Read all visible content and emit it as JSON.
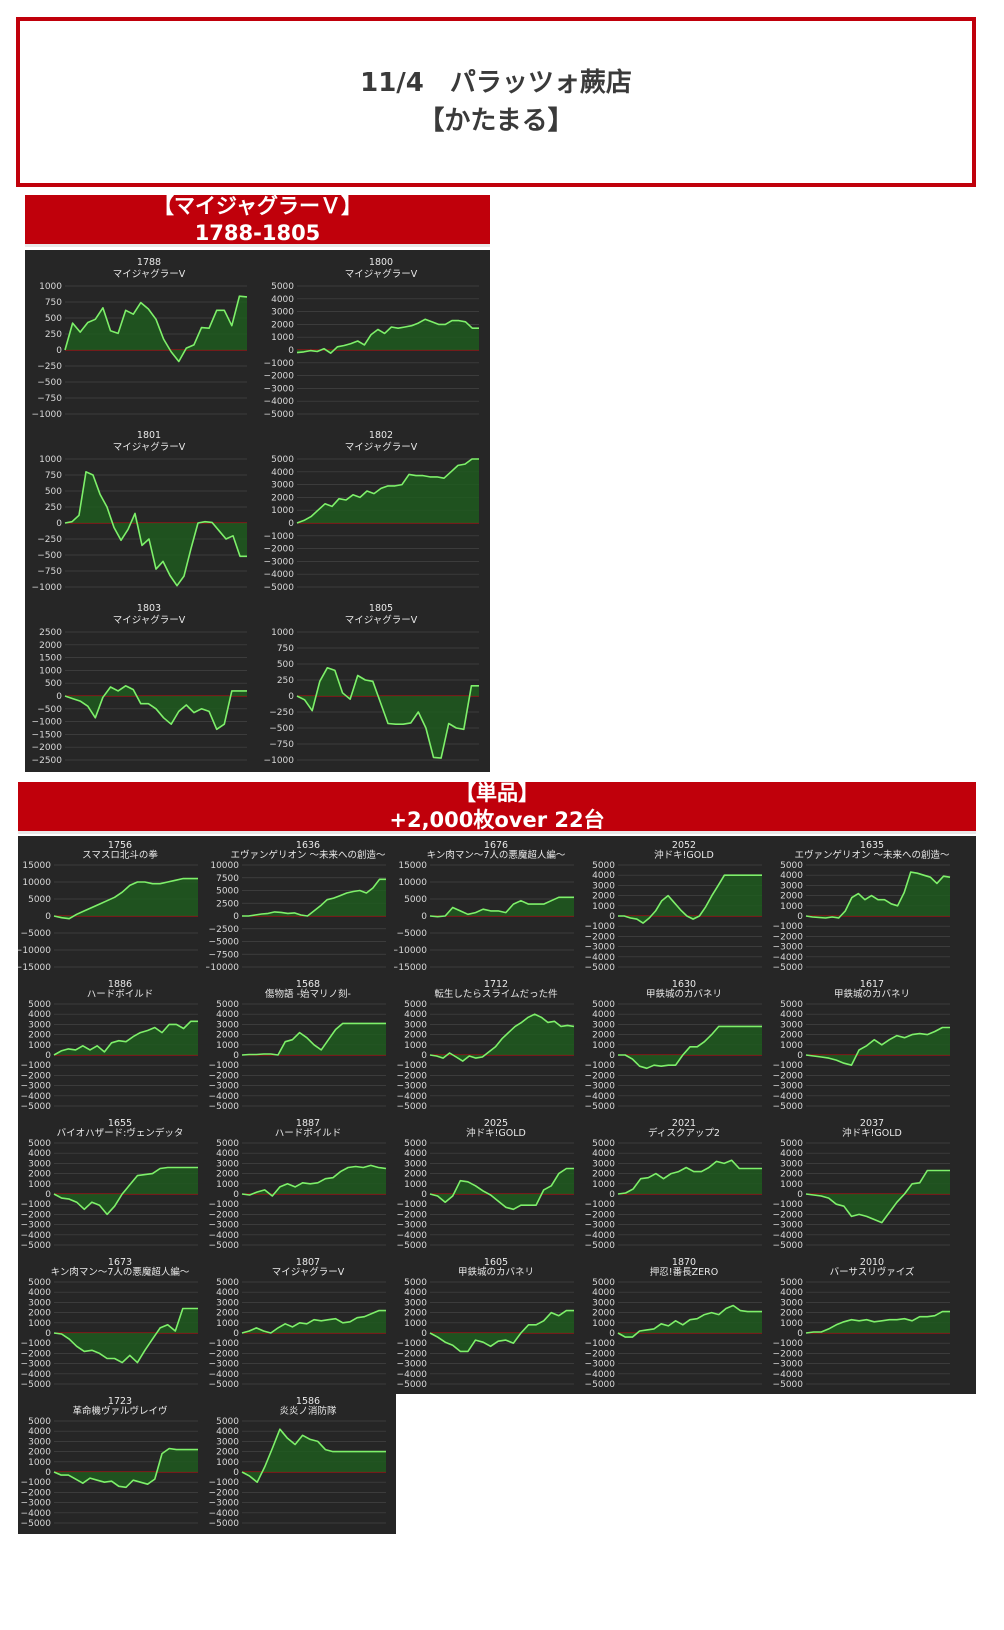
{
  "header": {
    "line1": "11/4　パラッツォ蕨店",
    "line2": "【かたまる】"
  },
  "section1": {
    "line1": "【マイジャグラーＶ】",
    "line2": "1788-1805"
  },
  "section2": {
    "line1": "【単品】",
    "line2": "+2,000枚over 22台"
  },
  "colors": {
    "accent": "#c0000b",
    "panel_bg": "#262626",
    "line": "#7ef06a",
    "area": "#1e5a1e",
    "zero_line": "#c01010"
  },
  "chart_data": [
    {
      "type": "area",
      "title": "1788",
      "subtitle": "マイジャグラーV",
      "yticks": [
        1000,
        750,
        500,
        250,
        0,
        -250,
        -500,
        -750,
        -1000
      ],
      "ylim": [
        -1000,
        1000
      ],
      "y": [
        0,
        420,
        280,
        430,
        480,
        660,
        300,
        260,
        620,
        560,
        740,
        640,
        480,
        170,
        -30,
        -180,
        30,
        80,
        350,
        340,
        620,
        620,
        380,
        840,
        830
      ]
    },
    {
      "type": "area",
      "title": "1800",
      "subtitle": "マイジャグラーV",
      "yticks": [
        5000,
        4000,
        3000,
        2000,
        1000,
        0,
        -1000,
        -2000,
        -3000,
        -4000,
        -5000
      ],
      "ylim": [
        -5000,
        5000
      ],
      "y": [
        -200,
        -150,
        -50,
        -120,
        100,
        -250,
        250,
        350,
        500,
        700,
        400,
        1200,
        1600,
        1300,
        1800,
        1700,
        1800,
        1900,
        2100,
        2400,
        2200,
        2000,
        2000,
        2300,
        2300,
        2200,
        1700,
        1700
      ]
    },
    {
      "type": "area",
      "title": "1801",
      "subtitle": "マイジャグラーV",
      "yticks": [
        1000,
        750,
        500,
        250,
        0,
        -250,
        -500,
        -750,
        -1000
      ],
      "ylim": [
        -1000,
        1000
      ],
      "y": [
        0,
        20,
        120,
        800,
        750,
        450,
        250,
        -70,
        -270,
        -100,
        150,
        -350,
        -250,
        -720,
        -600,
        -820,
        -980,
        -830,
        -400,
        0,
        20,
        10,
        -120,
        -250,
        -200,
        -520,
        -520
      ]
    },
    {
      "type": "area",
      "title": "1802",
      "subtitle": "マイジャグラーV",
      "yticks": [
        5000,
        4000,
        3000,
        2000,
        1000,
        0,
        -1000,
        -2000,
        -3000,
        -4000,
        -5000
      ],
      "ylim": [
        -5000,
        5000
      ],
      "y": [
        0,
        200,
        500,
        1000,
        1500,
        1300,
        1900,
        1800,
        2200,
        2000,
        2500,
        2300,
        2700,
        2900,
        2900,
        3000,
        3800,
        3700,
        3700,
        3600,
        3600,
        3500,
        4000,
        4500,
        4600,
        5000,
        5000
      ]
    },
    {
      "type": "area",
      "title": "1803",
      "subtitle": "マイジャグラーV",
      "yticks": [
        2500,
        2000,
        1500,
        1000,
        500,
        0,
        -500,
        -1000,
        -1500,
        -2000,
        -2500
      ],
      "ylim": [
        -2500,
        2500
      ],
      "y": [
        0,
        -100,
        -200,
        -400,
        -850,
        -50,
        350,
        200,
        400,
        250,
        -300,
        -300,
        -500,
        -850,
        -1100,
        -600,
        -350,
        -650,
        -500,
        -600,
        -1300,
        -1100,
        200,
        200,
        200
      ]
    },
    {
      "type": "area",
      "title": "1805",
      "subtitle": "マイジャグラーV",
      "yticks": [
        1000,
        750,
        500,
        250,
        0,
        -250,
        -500,
        -750,
        -1000
      ],
      "ylim": [
        -1000,
        1000
      ],
      "y": [
        0,
        -60,
        -230,
        230,
        440,
        400,
        50,
        -50,
        320,
        250,
        230,
        -100,
        -430,
        -440,
        -440,
        -420,
        -250,
        -500,
        -960,
        -970,
        -430,
        -500,
        -520,
        160,
        160
      ]
    },
    {
      "type": "area",
      "title": "1756",
      "subtitle": "スマスロ北斗の拳",
      "yticks": [
        15000,
        10000,
        5000,
        0,
        -5000,
        -10000,
        -15000
      ],
      "ylim": [
        -15000,
        15000
      ],
      "y": [
        0,
        -500,
        -800,
        500,
        1500,
        2500,
        3500,
        4500,
        5500,
        7000,
        9000,
        10000,
        10000,
        9500,
        9500,
        10000,
        10500,
        11000,
        11000,
        11000
      ]
    },
    {
      "type": "area",
      "title": "1636",
      "subtitle": "エヴァンゲリオン ～未来への創造～",
      "yticks": [
        10000,
        7500,
        5000,
        2500,
        0,
        -2500,
        -5000,
        -7500,
        -10000
      ],
      "ylim": [
        -10000,
        10000
      ],
      "y": [
        0,
        0,
        200,
        400,
        500,
        800,
        700,
        500,
        600,
        200,
        0,
        1000,
        2000,
        3200,
        3500,
        4000,
        4500,
        4800,
        5000,
        4500,
        5500,
        7200,
        7200
      ]
    },
    {
      "type": "area",
      "title": "1676",
      "subtitle": "キン肉マン～7人の悪魔超人編～",
      "yticks": [
        15000,
        10000,
        5000,
        0,
        -5000,
        -10000,
        -15000
      ],
      "ylim": [
        -15000,
        15000
      ],
      "y": [
        0,
        -200,
        0,
        2500,
        1500,
        500,
        1000,
        2000,
        1500,
        1500,
        1000,
        3500,
        4500,
        3500,
        3500,
        3500,
        4500,
        5500,
        5500,
        5500
      ]
    },
    {
      "type": "area",
      "title": "2052",
      "subtitle": "沖ドキ!GOLD",
      "yticks": [
        5000,
        4000,
        3000,
        2000,
        1000,
        0,
        -1000,
        -2000,
        -3000,
        -4000,
        -5000
      ],
      "ylim": [
        -5000,
        5000
      ],
      "y": [
        0,
        0,
        -200,
        -300,
        -700,
        -200,
        500,
        1500,
        2000,
        1300,
        600,
        0,
        -300,
        0,
        900,
        2000,
        3000,
        4000,
        4000,
        4000,
        4000,
        4000,
        4000,
        4000
      ]
    },
    {
      "type": "area",
      "title": "1635",
      "subtitle": "エヴァンゲリオン ～未来への創造～",
      "yticks": [
        5000,
        4000,
        3000,
        2000,
        1000,
        0,
        -1000,
        -2000,
        -3000,
        -4000,
        -5000
      ],
      "ylim": [
        -5000,
        5000
      ],
      "y": [
        0,
        -100,
        -150,
        -200,
        -100,
        -200,
        500,
        1800,
        2200,
        1600,
        2000,
        1600,
        1600,
        1200,
        1000,
        2300,
        4300,
        4200,
        4000,
        3800,
        3200,
        3900,
        3800
      ]
    },
    {
      "type": "area",
      "title": "1886",
      "subtitle": "ハードボイルド",
      "yticks": [
        5000,
        4000,
        3000,
        2000,
        1000,
        0,
        -1000,
        -2000,
        -3000,
        -4000,
        -5000
      ],
      "ylim": [
        -5000,
        5000
      ],
      "y": [
        0,
        400,
        600,
        500,
        900,
        500,
        900,
        300,
        1200,
        1400,
        1300,
        1800,
        2200,
        2400,
        2700,
        2200,
        3000,
        3000,
        2600,
        3300,
        3300
      ]
    },
    {
      "type": "area",
      "title": "1568",
      "subtitle": "傷物語 -始マリノ刻-",
      "yticks": [
        5000,
        4000,
        3000,
        2000,
        1000,
        0,
        -1000,
        -2000,
        -3000,
        -4000,
        -5000
      ],
      "ylim": [
        -5000,
        5000
      ],
      "y": [
        0,
        50,
        50,
        100,
        100,
        0,
        1300,
        1500,
        2200,
        1700,
        1000,
        500,
        1500,
        2500,
        3100,
        3100,
        3100,
        3100,
        3100,
        3100,
        3100
      ]
    },
    {
      "type": "area",
      "title": "1712",
      "subtitle": "転生したらスライムだった件",
      "yticks": [
        5000,
        4000,
        3000,
        2000,
        1000,
        0,
        -1000,
        -2000,
        -3000,
        -4000,
        -5000
      ],
      "ylim": [
        -5000,
        5000
      ],
      "y": [
        0,
        -100,
        -300,
        200,
        -200,
        -600,
        -100,
        -300,
        -200,
        300,
        800,
        1600,
        2200,
        2800,
        3200,
        3700,
        4000,
        3700,
        3200,
        3300,
        2800,
        2900,
        2800
      ]
    },
    {
      "type": "area",
      "title": "1630",
      "subtitle": "甲鉄城のカバネリ",
      "yticks": [
        5000,
        4000,
        3000,
        2000,
        1000,
        0,
        -1000,
        -2000,
        -3000,
        -4000,
        -5000
      ],
      "ylim": [
        -5000,
        5000
      ],
      "y": [
        0,
        0,
        -400,
        -1100,
        -1300,
        -1000,
        -1100,
        -1000,
        -1000,
        0,
        800,
        800,
        1300,
        2000,
        2800,
        2800,
        2800,
        2800,
        2800,
        2800,
        2800
      ]
    },
    {
      "type": "area",
      "title": "1617",
      "subtitle": "甲鉄城のカバネリ",
      "yticks": [
        5000,
        4000,
        3000,
        2000,
        1000,
        0,
        -1000,
        -2000,
        -3000,
        -4000,
        -5000
      ],
      "ylim": [
        -5000,
        5000
      ],
      "y": [
        0,
        -100,
        -200,
        -300,
        -500,
        -800,
        -1000,
        500,
        900,
        1500,
        1000,
        1500,
        1900,
        1700,
        2000,
        2100,
        2000,
        2300,
        2700,
        2700
      ]
    },
    {
      "type": "area",
      "title": "1655",
      "subtitle": "バイオハザード:ヴェンデッタ",
      "yticks": [
        5000,
        4000,
        3000,
        2000,
        1000,
        0,
        -1000,
        -2000,
        -3000,
        -4000,
        -5000
      ],
      "ylim": [
        -5000,
        5000
      ],
      "y": [
        0,
        -400,
        -500,
        -800,
        -1500,
        -800,
        -1100,
        -2000,
        -1200,
        0,
        900,
        1800,
        1900,
        2000,
        2500,
        2600,
        2600,
        2600,
        2600,
        2600
      ]
    },
    {
      "type": "area",
      "title": "1887",
      "subtitle": "ハードボイルド",
      "yticks": [
        5000,
        4000,
        3000,
        2000,
        1000,
        0,
        -1000,
        -2000,
        -3000,
        -4000,
        -5000
      ],
      "ylim": [
        -5000,
        5000
      ],
      "y": [
        0,
        -100,
        200,
        400,
        -200,
        700,
        1000,
        700,
        1100,
        1000,
        1100,
        1500,
        1600,
        2200,
        2600,
        2700,
        2600,
        2800,
        2600,
        2500
      ]
    },
    {
      "type": "area",
      "title": "2025",
      "subtitle": "沖ドキ!GOLD",
      "yticks": [
        5000,
        4000,
        3000,
        2000,
        1000,
        0,
        -1000,
        -2000,
        -3000,
        -4000,
        -5000
      ],
      "ylim": [
        -5000,
        5000
      ],
      "y": [
        0,
        -200,
        -800,
        -200,
        1300,
        1200,
        800,
        300,
        -100,
        -700,
        -1300,
        -1500,
        -1100,
        -1100,
        -1100,
        400,
        800,
        2000,
        2500,
        2500
      ]
    },
    {
      "type": "area",
      "title": "2021",
      "subtitle": "ディスクアップ2",
      "yticks": [
        5000,
        4000,
        3000,
        2000,
        1000,
        0,
        -1000,
        -2000,
        -3000,
        -4000,
        -5000
      ],
      "ylim": [
        -5000,
        5000
      ],
      "y": [
        0,
        100,
        500,
        1500,
        1600,
        2000,
        1500,
        2000,
        2200,
        2600,
        2200,
        2200,
        2600,
        3200,
        3000,
        3300,
        2500,
        2500,
        2500,
        2500
      ]
    },
    {
      "type": "area",
      "title": "2037",
      "subtitle": "沖ドキ!GOLD",
      "yticks": [
        5000,
        4000,
        3000,
        2000,
        1000,
        0,
        -1000,
        -2000,
        -3000,
        -4000,
        -5000
      ],
      "ylim": [
        -5000,
        5000
      ],
      "y": [
        0,
        -100,
        -200,
        -400,
        -1000,
        -1200,
        -2200,
        -2000,
        -2200,
        -2500,
        -2800,
        -1800,
        -800,
        0,
        1000,
        1100,
        2300,
        2300,
        2300,
        2300
      ]
    },
    {
      "type": "area",
      "title": "1673",
      "subtitle": "キン肉マン～7人の悪魔超人編～",
      "yticks": [
        5000,
        4000,
        3000,
        2000,
        1000,
        0,
        -1000,
        -2000,
        -3000,
        -4000,
        -5000
      ],
      "ylim": [
        -5000,
        5000
      ],
      "y": [
        0,
        -100,
        -600,
        -1300,
        -1800,
        -1700,
        -2000,
        -2500,
        -2500,
        -2900,
        -2200,
        -2900,
        -1700,
        -600,
        500,
        800,
        200,
        2400,
        2400,
        2400
      ]
    },
    {
      "type": "area",
      "title": "1807",
      "subtitle": "マイジャグラーV",
      "yticks": [
        5000,
        4000,
        3000,
        2000,
        1000,
        0,
        -1000,
        -2000,
        -3000,
        -4000,
        -5000
      ],
      "ylim": [
        -5000,
        5000
      ],
      "y": [
        0,
        200,
        500,
        200,
        0,
        500,
        900,
        600,
        1000,
        900,
        1300,
        1200,
        1300,
        1400,
        1000,
        1100,
        1500,
        1600,
        1900,
        2200,
        2200
      ]
    },
    {
      "type": "area",
      "title": "1605",
      "subtitle": "甲鉄城のカバネリ",
      "yticks": [
        5000,
        4000,
        3000,
        2000,
        1000,
        0,
        -1000,
        -2000,
        -3000,
        -4000,
        -5000
      ],
      "ylim": [
        -5000,
        5000
      ],
      "y": [
        0,
        -400,
        -900,
        -1200,
        -1800,
        -1800,
        -700,
        -900,
        -1300,
        -800,
        -700,
        -1000,
        0,
        800,
        800,
        1200,
        2000,
        1700,
        2200,
        2200
      ]
    },
    {
      "type": "area",
      "title": "1870",
      "subtitle": "押忍!番長ZERO",
      "yticks": [
        5000,
        4000,
        3000,
        2000,
        1000,
        0,
        -1000,
        -2000,
        -3000,
        -4000,
        -5000
      ],
      "ylim": [
        -5000,
        5000
      ],
      "y": [
        0,
        -400,
        -400,
        200,
        300,
        400,
        900,
        700,
        1200,
        800,
        1300,
        1400,
        1800,
        2000,
        1800,
        2400,
        2700,
        2200,
        2100,
        2100,
        2100
      ]
    },
    {
      "type": "area",
      "title": "2010",
      "subtitle": "バーサスリヴァイズ",
      "yticks": [
        5000,
        4000,
        3000,
        2000,
        1000,
        0,
        -1000,
        -2000,
        -3000,
        -4000,
        -5000
      ],
      "ylim": [
        -5000,
        5000
      ],
      "y": [
        0,
        100,
        100,
        400,
        800,
        1100,
        1300,
        1200,
        1300,
        1100,
        1200,
        1300,
        1300,
        1400,
        1200,
        1600,
        1600,
        1700,
        2100,
        2100
      ]
    },
    {
      "type": "area",
      "title": "1723",
      "subtitle": "革命機ヴァルヴレイヴ",
      "yticks": [
        5000,
        4000,
        3000,
        2000,
        1000,
        0,
        -1000,
        -2000,
        -3000,
        -4000,
        -5000
      ],
      "ylim": [
        -5000,
        5000
      ],
      "y": [
        0,
        -300,
        -300,
        -700,
        -1100,
        -600,
        -800,
        -1000,
        -900,
        -1400,
        -1500,
        -800,
        -1000,
        -1200,
        -700,
        1800,
        2300,
        2200,
        2200,
        2200,
        2200
      ]
    },
    {
      "type": "area",
      "title": "1586",
      "subtitle": "炎炎ノ消防隊",
      "yticks": [
        5000,
        4000,
        3000,
        2000,
        1000,
        0,
        -1000,
        -2000,
        -3000,
        -4000,
        -5000
      ],
      "ylim": [
        -5000,
        5000
      ],
      "y": [
        0,
        -400,
        -1000,
        500,
        2300,
        4200,
        3300,
        2700,
        3600,
        3200,
        3000,
        2200,
        2000,
        2000,
        2000,
        2000,
        2000,
        2000,
        2000,
        2000
      ]
    }
  ]
}
